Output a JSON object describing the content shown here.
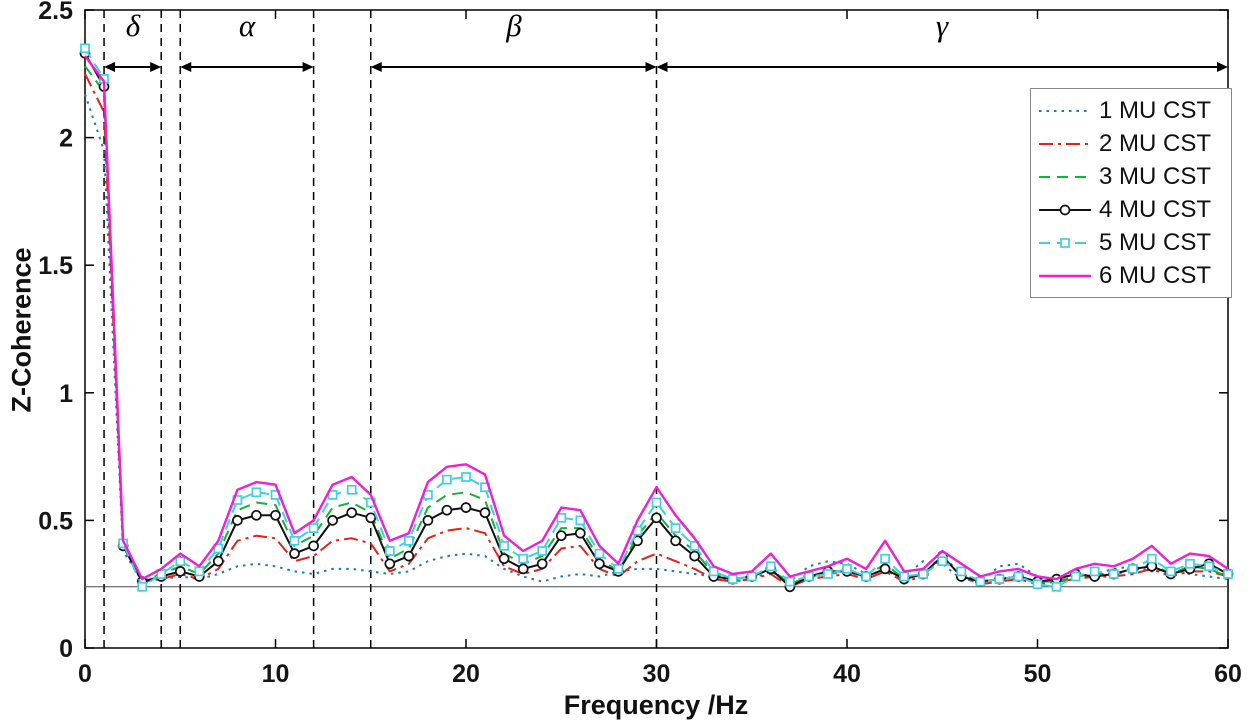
{
  "axes": {
    "xlabel": "Frequency /Hz",
    "ylabel": "Z-Coherence"
  },
  "bands": [
    {
      "label": "δ",
      "from": 1,
      "to": 4
    },
    {
      "label": "α",
      "from": 5,
      "to": 12
    },
    {
      "label": "β",
      "from": 15,
      "to": 30
    },
    {
      "label": "γ",
      "from": 30,
      "to": 60
    }
  ],
  "chart_data": {
    "type": "line",
    "title": "",
    "xlabel": "Frequency /Hz",
    "ylabel": "Z-Coherence",
    "xlim": [
      0,
      60
    ],
    "ylim": [
      0,
      2.5
    ],
    "xticks": [
      0,
      10,
      20,
      30,
      40,
      50,
      60
    ],
    "yticks": [
      0,
      0.5,
      1,
      1.5,
      2,
      2.5
    ],
    "ytick_labels": [
      "0",
      "0.5",
      "1",
      "1.5",
      "2",
      "2.5"
    ],
    "grid": false,
    "legend_position": "top-right",
    "significance_line_y": 0.24,
    "band_boundaries": [
      1,
      4,
      5,
      12,
      15,
      30
    ],
    "x": [
      0,
      1,
      2,
      3,
      4,
      5,
      6,
      7,
      8,
      9,
      10,
      11,
      12,
      13,
      14,
      15,
      16,
      17,
      18,
      19,
      20,
      21,
      22,
      23,
      24,
      25,
      26,
      27,
      28,
      29,
      30,
      31,
      32,
      33,
      34,
      35,
      36,
      37,
      38,
      39,
      40,
      41,
      42,
      43,
      44,
      45,
      46,
      47,
      48,
      49,
      50,
      51,
      52,
      53,
      54,
      55,
      56,
      57,
      58,
      59,
      60
    ],
    "series": [
      {
        "name": "1 MU CST",
        "color": "#1a7ab5",
        "line": "dotted",
        "marker": "none",
        "width": 2,
        "values": [
          2.17,
          1.95,
          0.38,
          0.26,
          0.27,
          0.28,
          0.27,
          0.29,
          0.32,
          0.33,
          0.32,
          0.3,
          0.29,
          0.31,
          0.31,
          0.3,
          0.29,
          0.3,
          0.34,
          0.36,
          0.37,
          0.36,
          0.31,
          0.28,
          0.26,
          0.28,
          0.29,
          0.28,
          0.3,
          0.31,
          0.31,
          0.3,
          0.29,
          0.28,
          0.26,
          0.27,
          0.3,
          0.26,
          0.32,
          0.34,
          0.33,
          0.29,
          0.3,
          0.28,
          0.34,
          0.33,
          0.27,
          0.26,
          0.32,
          0.33,
          0.28,
          0.26,
          0.27,
          0.29,
          0.31,
          0.32,
          0.3,
          0.31,
          0.29,
          0.28,
          0.27
        ]
      },
      {
        "name": "2 MU CST",
        "color": "#e2231a",
        "line": "dashdot",
        "marker": "none",
        "width": 2,
        "values": [
          2.25,
          2.1,
          0.4,
          0.26,
          0.27,
          0.29,
          0.27,
          0.31,
          0.42,
          0.44,
          0.43,
          0.34,
          0.36,
          0.42,
          0.43,
          0.41,
          0.3,
          0.33,
          0.43,
          0.46,
          0.47,
          0.45,
          0.32,
          0.29,
          0.31,
          0.39,
          0.4,
          0.31,
          0.28,
          0.34,
          0.37,
          0.34,
          0.31,
          0.27,
          0.26,
          0.27,
          0.29,
          0.24,
          0.27,
          0.28,
          0.29,
          0.27,
          0.3,
          0.26,
          0.28,
          0.37,
          0.28,
          0.25,
          0.26,
          0.27,
          0.25,
          0.26,
          0.27,
          0.28,
          0.28,
          0.29,
          0.31,
          0.28,
          0.3,
          0.3,
          0.28
        ]
      },
      {
        "name": "3 MU CST",
        "color": "#16b03c",
        "line": "dashed",
        "marker": "none",
        "width": 2,
        "values": [
          2.28,
          2.18,
          0.41,
          0.26,
          0.29,
          0.32,
          0.29,
          0.37,
          0.54,
          0.57,
          0.56,
          0.4,
          0.44,
          0.55,
          0.57,
          0.53,
          0.35,
          0.39,
          0.55,
          0.6,
          0.61,
          0.58,
          0.37,
          0.33,
          0.36,
          0.47,
          0.47,
          0.35,
          0.3,
          0.44,
          0.53,
          0.44,
          0.38,
          0.29,
          0.27,
          0.28,
          0.31,
          0.25,
          0.28,
          0.29,
          0.3,
          0.28,
          0.33,
          0.27,
          0.29,
          0.34,
          0.29,
          0.26,
          0.27,
          0.28,
          0.26,
          0.26,
          0.28,
          0.29,
          0.29,
          0.3,
          0.33,
          0.29,
          0.32,
          0.31,
          0.28
        ]
      },
      {
        "name": "4 MU CST",
        "color": "#111111",
        "line": "solid",
        "marker": "circle",
        "width": 2,
        "values": [
          2.33,
          2.2,
          0.4,
          0.26,
          0.28,
          0.3,
          0.28,
          0.34,
          0.5,
          0.52,
          0.52,
          0.37,
          0.4,
          0.5,
          0.53,
          0.51,
          0.33,
          0.36,
          0.5,
          0.54,
          0.55,
          0.53,
          0.35,
          0.31,
          0.33,
          0.44,
          0.45,
          0.33,
          0.3,
          0.42,
          0.51,
          0.42,
          0.36,
          0.28,
          0.27,
          0.28,
          0.31,
          0.24,
          0.28,
          0.3,
          0.3,
          0.28,
          0.31,
          0.27,
          0.29,
          0.36,
          0.28,
          0.26,
          0.27,
          0.28,
          0.26,
          0.27,
          0.29,
          0.28,
          0.29,
          0.31,
          0.32,
          0.29,
          0.31,
          0.33,
          0.29
        ]
      },
      {
        "name": "5 MU CST",
        "color": "#3fcfe2",
        "line": "dashed",
        "marker": "square",
        "width": 2,
        "values": [
          2.35,
          2.23,
          0.41,
          0.24,
          0.29,
          0.34,
          0.3,
          0.39,
          0.58,
          0.61,
          0.6,
          0.42,
          0.47,
          0.6,
          0.62,
          0.57,
          0.38,
          0.42,
          0.6,
          0.66,
          0.67,
          0.63,
          0.4,
          0.35,
          0.38,
          0.51,
          0.5,
          0.37,
          0.31,
          0.46,
          0.57,
          0.47,
          0.4,
          0.3,
          0.27,
          0.28,
          0.32,
          0.26,
          0.28,
          0.29,
          0.31,
          0.28,
          0.35,
          0.28,
          0.29,
          0.34,
          0.3,
          0.26,
          0.27,
          0.28,
          0.25,
          0.24,
          0.28,
          0.3,
          0.29,
          0.31,
          0.35,
          0.3,
          0.33,
          0.32,
          0.29
        ]
      },
      {
        "name": "6 MU CST",
        "color": "#ef1fd4",
        "line": "solid",
        "marker": "none",
        "width": 2.4,
        "values": [
          2.32,
          2.22,
          0.42,
          0.27,
          0.31,
          0.37,
          0.32,
          0.42,
          0.62,
          0.65,
          0.64,
          0.45,
          0.5,
          0.64,
          0.67,
          0.6,
          0.42,
          0.45,
          0.65,
          0.71,
          0.72,
          0.68,
          0.44,
          0.38,
          0.42,
          0.55,
          0.54,
          0.4,
          0.33,
          0.5,
          0.63,
          0.52,
          0.43,
          0.32,
          0.29,
          0.3,
          0.37,
          0.28,
          0.3,
          0.32,
          0.35,
          0.31,
          0.42,
          0.3,
          0.31,
          0.38,
          0.33,
          0.28,
          0.3,
          0.31,
          0.28,
          0.27,
          0.31,
          0.33,
          0.32,
          0.35,
          0.4,
          0.33,
          0.37,
          0.36,
          0.31
        ]
      }
    ]
  }
}
